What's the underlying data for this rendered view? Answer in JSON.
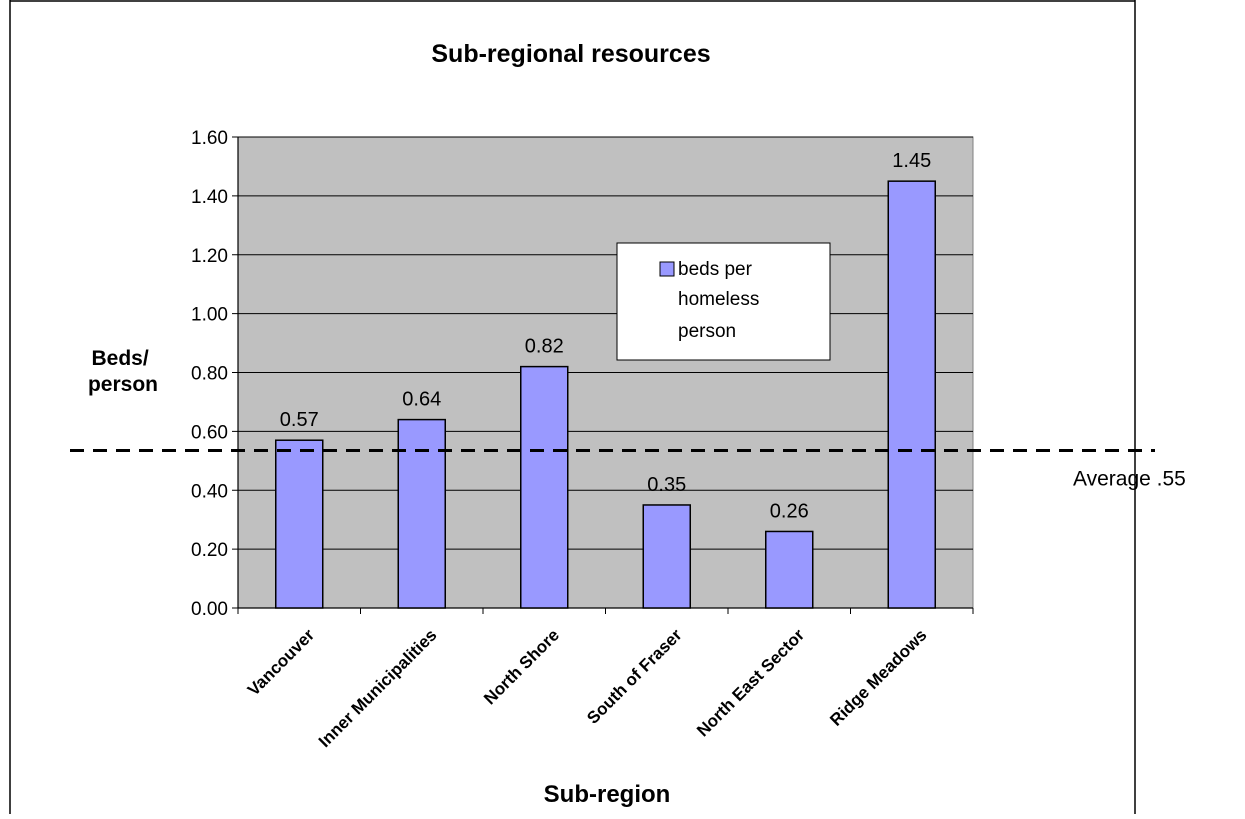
{
  "chart_data": {
    "type": "bar",
    "title": "Sub-regional resources",
    "xlabel": "Sub-region",
    "ylabel_lines": [
      "Beds/",
      "person"
    ],
    "categories": [
      "Vancouver",
      "Inner Municipalities",
      "North Shore",
      "South of Fraser",
      "North East Sector",
      "Ridge Meadows"
    ],
    "series": [
      {
        "name": "beds per homeless person",
        "legend_lines": [
          "beds per",
          "homeless",
          "person"
        ],
        "values": [
          0.57,
          0.64,
          0.82,
          0.35,
          0.26,
          1.45
        ],
        "labels": [
          "0.57",
          "0.64",
          "0.82",
          "0.35",
          "0.26",
          "1.45"
        ]
      }
    ],
    "ylim": [
      0,
      1.6
    ],
    "yticks": [
      "0.00",
      "0.20",
      "0.40",
      "0.60",
      "0.80",
      "1.00",
      "1.20",
      "1.40",
      "1.60"
    ],
    "reference_line": {
      "value": 0.535,
      "label": "Average .55"
    },
    "grid": true,
    "legend_position": "center",
    "colors": {
      "bar": "#9999ff",
      "plot_background": "#c0c0c0",
      "gridline": "#000000",
      "bar_edge": "#000000"
    }
  }
}
